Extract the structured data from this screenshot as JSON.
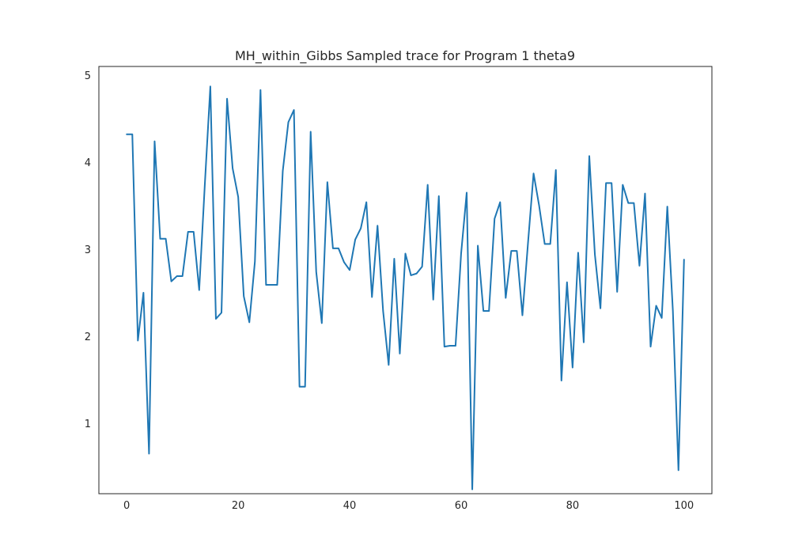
{
  "chart_data": {
    "type": "line",
    "title": "MH_within_Gibbs Sampled trace for Program 1 theta9",
    "xlabel": "",
    "ylabel": "",
    "xlim": [
      -5,
      105
    ],
    "ylim": [
      0.19,
      5.1
    ],
    "xticks": [
      0,
      20,
      40,
      60,
      80,
      100
    ],
    "yticks": [
      1,
      2,
      3,
      4,
      5
    ],
    "grid": false,
    "legend": "none",
    "line_color": "#1f77b4",
    "series": [
      {
        "x": [
          0,
          1,
          2,
          3,
          4,
          5,
          6,
          7,
          8,
          9,
          10,
          11,
          12,
          13,
          14,
          15,
          16,
          17,
          18,
          19,
          20,
          21,
          22,
          23,
          24,
          25,
          26,
          27,
          28,
          29,
          30,
          31,
          32,
          33,
          34,
          35,
          36,
          37,
          38,
          39,
          40,
          41,
          42,
          43,
          44,
          45,
          46,
          47,
          48,
          49,
          50,
          51,
          52,
          53,
          54,
          55,
          56,
          57,
          58,
          59,
          60,
          61,
          62,
          63,
          64,
          65,
          66,
          67,
          68,
          69,
          70,
          71,
          72,
          73,
          74,
          75,
          76,
          77,
          78,
          79,
          80,
          81,
          82,
          83,
          84,
          85,
          86,
          87,
          88,
          89,
          90,
          91,
          92,
          93,
          94,
          95,
          96,
          97,
          98,
          99,
          100
        ],
        "values": [
          4.32,
          4.32,
          1.95,
          2.5,
          0.65,
          4.24,
          3.12,
          3.12,
          2.63,
          2.69,
          2.69,
          3.2,
          3.2,
          2.53,
          3.73,
          4.87,
          2.2,
          2.27,
          4.73,
          3.93,
          3.6,
          2.46,
          2.16,
          2.86,
          4.83,
          2.59,
          2.59,
          2.59,
          3.9,
          4.46,
          4.6,
          1.42,
          1.42,
          4.35,
          2.74,
          2.15,
          3.77,
          3.01,
          3.01,
          2.85,
          2.76,
          3.11,
          3.24,
          3.54,
          2.45,
          3.27,
          2.29,
          1.67,
          2.89,
          1.8,
          2.95,
          2.7,
          2.72,
          2.8,
          3.74,
          2.42,
          3.61,
          1.88,
          1.89,
          1.89,
          2.95,
          3.65,
          0.24,
          3.04,
          2.29,
          2.29,
          3.35,
          3.54,
          2.44,
          2.98,
          2.98,
          2.24,
          3.07,
          3.87,
          3.5,
          3.06,
          3.06,
          3.91,
          1.49,
          2.62,
          1.64,
          2.96,
          1.93,
          4.07,
          2.94,
          2.32,
          3.76,
          3.76,
          2.51,
          3.74,
          3.53,
          3.53,
          2.81,
          3.64,
          1.88,
          2.35,
          2.21,
          3.49,
          2.29,
          0.46,
          2.88
        ]
      }
    ]
  }
}
